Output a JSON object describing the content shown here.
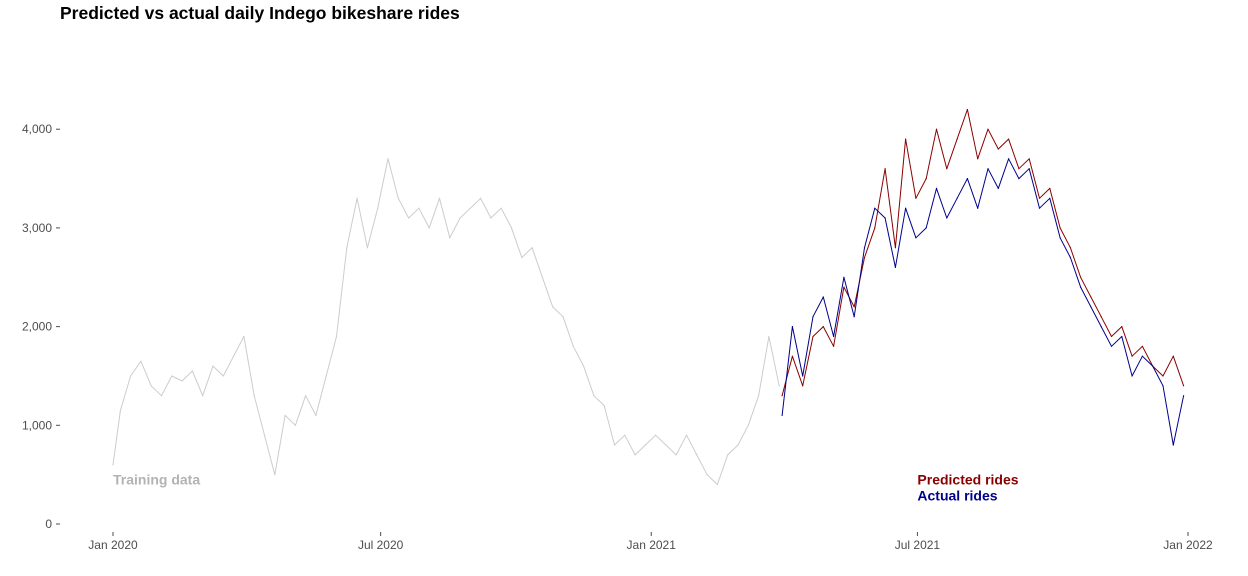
{
  "chart_data": {
    "type": "line",
    "title": "Predicted vs actual daily Indego bikeshare rides",
    "xlabel": "",
    "ylabel": "",
    "x_range": [
      "2020-01-01",
      "2022-01-01"
    ],
    "x_ticks": [
      {
        "date": "2020-01-01",
        "label": "Jan 2020"
      },
      {
        "date": "2020-07-01",
        "label": "Jul 2020"
      },
      {
        "date": "2021-01-01",
        "label": "Jan 2021"
      },
      {
        "date": "2021-07-01",
        "label": "Jul 2021"
      },
      {
        "date": "2022-01-01",
        "label": "Jan 2022"
      }
    ],
    "ylim": [
      0,
      4600
    ],
    "y_ticks": [
      {
        "value": 0,
        "label": "0"
      },
      {
        "value": 1000,
        "label": "1,000"
      },
      {
        "value": 2000,
        "label": "2,000"
      },
      {
        "value": 3000,
        "label": "3,000"
      },
      {
        "value": 4000,
        "label": "4,000"
      }
    ],
    "grid": false,
    "legend": "inline text annotations",
    "annotations": [
      {
        "text": "Training data",
        "color": "#b3b3b3",
        "date": "2020-01-01",
        "value": 450
      },
      {
        "text": "Predicted rides",
        "color": "#8b0000",
        "date": "2021-07-01",
        "value": 450
      },
      {
        "text": "Actual rides",
        "color": "#00008b",
        "date": "2021-07-01",
        "value": 290
      }
    ],
    "series": [
      {
        "key": "training",
        "color": "#cccccc",
        "points": [
          [
            "2020-01-01",
            600
          ],
          [
            "2020-01-06",
            1150
          ],
          [
            "2020-01-13",
            1500
          ],
          [
            "2020-01-20",
            1650
          ],
          [
            "2020-01-27",
            1400
          ],
          [
            "2020-02-03",
            1300
          ],
          [
            "2020-02-10",
            1500
          ],
          [
            "2020-02-17",
            1450
          ],
          [
            "2020-02-24",
            1550
          ],
          [
            "2020-03-02",
            1300
          ],
          [
            "2020-03-09",
            1600
          ],
          [
            "2020-03-16",
            1500
          ],
          [
            "2020-03-23",
            1700
          ],
          [
            "2020-03-30",
            1900
          ],
          [
            "2020-04-06",
            1300
          ],
          [
            "2020-04-13",
            900
          ],
          [
            "2020-04-20",
            500
          ],
          [
            "2020-04-27",
            1100
          ],
          [
            "2020-05-04",
            1000
          ],
          [
            "2020-05-11",
            1300
          ],
          [
            "2020-05-18",
            1100
          ],
          [
            "2020-05-25",
            1500
          ],
          [
            "2020-06-01",
            1900
          ],
          [
            "2020-06-08",
            2800
          ],
          [
            "2020-06-15",
            3300
          ],
          [
            "2020-06-22",
            2800
          ],
          [
            "2020-06-29",
            3200
          ],
          [
            "2020-07-06",
            3700
          ],
          [
            "2020-07-13",
            3300
          ],
          [
            "2020-07-20",
            3100
          ],
          [
            "2020-07-27",
            3200
          ],
          [
            "2020-08-03",
            3000
          ],
          [
            "2020-08-10",
            3300
          ],
          [
            "2020-08-17",
            2900
          ],
          [
            "2020-08-24",
            3100
          ],
          [
            "2020-08-31",
            3200
          ],
          [
            "2020-09-07",
            3300
          ],
          [
            "2020-09-14",
            3100
          ],
          [
            "2020-09-21",
            3200
          ],
          [
            "2020-09-28",
            3000
          ],
          [
            "2020-10-05",
            2700
          ],
          [
            "2020-10-12",
            2800
          ],
          [
            "2020-10-19",
            2500
          ],
          [
            "2020-10-26",
            2200
          ],
          [
            "2020-11-02",
            2100
          ],
          [
            "2020-11-09",
            1800
          ],
          [
            "2020-11-16",
            1600
          ],
          [
            "2020-11-23",
            1300
          ],
          [
            "2020-11-30",
            1200
          ],
          [
            "2020-12-07",
            800
          ],
          [
            "2020-12-14",
            900
          ],
          [
            "2020-12-21",
            700
          ],
          [
            "2020-12-28",
            800
          ],
          [
            "2021-01-04",
            900
          ],
          [
            "2021-01-11",
            800
          ],
          [
            "2021-01-18",
            700
          ],
          [
            "2021-01-25",
            900
          ],
          [
            "2021-02-01",
            700
          ],
          [
            "2021-02-08",
            500
          ],
          [
            "2021-02-15",
            400
          ],
          [
            "2021-02-22",
            700
          ],
          [
            "2021-03-01",
            800
          ],
          [
            "2021-03-08",
            1000
          ],
          [
            "2021-03-15",
            1300
          ],
          [
            "2021-03-22",
            1900
          ],
          [
            "2021-03-29",
            1400
          ]
        ]
      },
      {
        "key": "predicted",
        "color": "#8b0000",
        "points": [
          [
            "2021-03-31",
            1300
          ],
          [
            "2021-04-07",
            1700
          ],
          [
            "2021-04-14",
            1400
          ],
          [
            "2021-04-21",
            1900
          ],
          [
            "2021-04-28",
            2000
          ],
          [
            "2021-05-05",
            1800
          ],
          [
            "2021-05-12",
            2400
          ],
          [
            "2021-05-19",
            2200
          ],
          [
            "2021-05-26",
            2700
          ],
          [
            "2021-06-02",
            3000
          ],
          [
            "2021-06-09",
            3600
          ],
          [
            "2021-06-16",
            2800
          ],
          [
            "2021-06-23",
            3900
          ],
          [
            "2021-06-30",
            3300
          ],
          [
            "2021-07-07",
            3500
          ],
          [
            "2021-07-14",
            4000
          ],
          [
            "2021-07-21",
            3600
          ],
          [
            "2021-07-28",
            3900
          ],
          [
            "2021-08-04",
            4200
          ],
          [
            "2021-08-11",
            3700
          ],
          [
            "2021-08-18",
            4000
          ],
          [
            "2021-08-25",
            3800
          ],
          [
            "2021-09-01",
            3900
          ],
          [
            "2021-09-08",
            3600
          ],
          [
            "2021-09-15",
            3700
          ],
          [
            "2021-09-22",
            3300
          ],
          [
            "2021-09-29",
            3400
          ],
          [
            "2021-10-06",
            3000
          ],
          [
            "2021-10-13",
            2800
          ],
          [
            "2021-10-20",
            2500
          ],
          [
            "2021-10-27",
            2300
          ],
          [
            "2021-11-03",
            2100
          ],
          [
            "2021-11-10",
            1900
          ],
          [
            "2021-11-17",
            2000
          ],
          [
            "2021-11-24",
            1700
          ],
          [
            "2021-12-01",
            1800
          ],
          [
            "2021-12-08",
            1600
          ],
          [
            "2021-12-15",
            1500
          ],
          [
            "2021-12-22",
            1700
          ],
          [
            "2021-12-29",
            1400
          ]
        ]
      },
      {
        "key": "actual",
        "color": "#00008b",
        "points": [
          [
            "2021-03-31",
            1100
          ],
          [
            "2021-04-07",
            2000
          ],
          [
            "2021-04-14",
            1500
          ],
          [
            "2021-04-21",
            2100
          ],
          [
            "2021-04-28",
            2300
          ],
          [
            "2021-05-05",
            1900
          ],
          [
            "2021-05-12",
            2500
          ],
          [
            "2021-05-19",
            2100
          ],
          [
            "2021-05-26",
            2800
          ],
          [
            "2021-06-02",
            3200
          ],
          [
            "2021-06-09",
            3100
          ],
          [
            "2021-06-16",
            2600
          ],
          [
            "2021-06-23",
            3200
          ],
          [
            "2021-06-30",
            2900
          ],
          [
            "2021-07-07",
            3000
          ],
          [
            "2021-07-14",
            3400
          ],
          [
            "2021-07-21",
            3100
          ],
          [
            "2021-07-28",
            3300
          ],
          [
            "2021-08-04",
            3500
          ],
          [
            "2021-08-11",
            3200
          ],
          [
            "2021-08-18",
            3600
          ],
          [
            "2021-08-25",
            3400
          ],
          [
            "2021-09-01",
            3700
          ],
          [
            "2021-09-08",
            3500
          ],
          [
            "2021-09-15",
            3600
          ],
          [
            "2021-09-22",
            3200
          ],
          [
            "2021-09-29",
            3300
          ],
          [
            "2021-10-06",
            2900
          ],
          [
            "2021-10-13",
            2700
          ],
          [
            "2021-10-20",
            2400
          ],
          [
            "2021-10-27",
            2200
          ],
          [
            "2021-11-03",
            2000
          ],
          [
            "2021-11-10",
            1800
          ],
          [
            "2021-11-17",
            1900
          ],
          [
            "2021-11-24",
            1500
          ],
          [
            "2021-12-01",
            1700
          ],
          [
            "2021-12-08",
            1600
          ],
          [
            "2021-12-15",
            1400
          ],
          [
            "2021-12-22",
            800
          ],
          [
            "2021-12-29",
            1300
          ]
        ]
      }
    ]
  }
}
